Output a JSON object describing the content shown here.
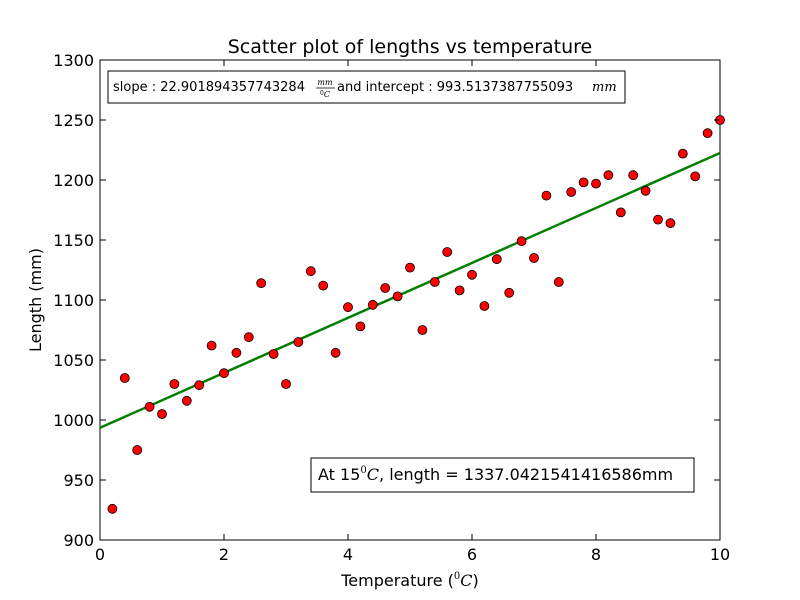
{
  "chart_data": {
    "type": "scatter",
    "title": "Scatter plot of lengths vs temperature",
    "xlabel": {
      "prefix": "Temperature (",
      "sup": "0",
      "unit": "C",
      "suffix": ")"
    },
    "ylabel": "Length (mm)",
    "xlim": [
      0,
      10
    ],
    "ylim": [
      900,
      1300
    ],
    "x_ticks": [
      0,
      2,
      4,
      6,
      8,
      10
    ],
    "y_ticks": [
      900,
      950,
      1000,
      1050,
      1100,
      1150,
      1200,
      1250,
      1300
    ],
    "grid": false,
    "marker_color": "#ff0000",
    "line_color": "#007f00",
    "points": {
      "x": [
        0.2,
        0.4,
        0.6,
        0.8,
        1.0,
        1.2,
        1.4,
        1.6,
        1.8,
        2.0,
        2.2,
        2.4,
        2.6,
        2.8,
        3.0,
        3.2,
        3.4,
        3.6,
        3.8,
        4.0,
        4.2,
        4.4,
        4.6,
        4.8,
        5.0,
        5.2,
        5.4,
        5.6,
        5.8,
        6.0,
        6.2,
        6.4,
        6.6,
        6.8,
        7.0,
        7.2,
        7.4,
        7.6,
        7.8,
        8.0,
        8.2,
        8.4,
        8.6,
        8.8,
        9.0,
        9.2,
        9.4,
        9.6,
        9.8,
        10.0
      ],
      "y": [
        926,
        1035,
        975,
        1011,
        1005,
        1030,
        1016,
        1029,
        1062,
        1039,
        1056,
        1069,
        1114,
        1055,
        1030,
        1065,
        1124,
        1112,
        1056,
        1094,
        1078,
        1096,
        1110,
        1103,
        1127,
        1075,
        1115,
        1140,
        1108,
        1121,
        1095,
        1134,
        1106,
        1149,
        1135,
        1187,
        1115,
        1190,
        1198,
        1197,
        1204,
        1173,
        1204,
        1191,
        1167,
        1164,
        1222,
        1203,
        1239,
        1250
      ]
    },
    "fit_line": {
      "slope": 22.901894357743284,
      "intercept": 993.5137387755093
    },
    "annotations": {
      "fit": {
        "slope_prefix": "slope : 22.901894357743284",
        "slope_unit_numerator": "mm",
        "slope_unit_denominator_sup": "0",
        "slope_unit_denominator": "C",
        "middle": " and intercept : 993.5137387755093",
        "intercept_unit": "mm"
      },
      "prediction": {
        "prefix": "At 15",
        "sup": "0",
        "unit": "C",
        "suffix": ", length = 1337.0421541416586mm"
      }
    }
  }
}
